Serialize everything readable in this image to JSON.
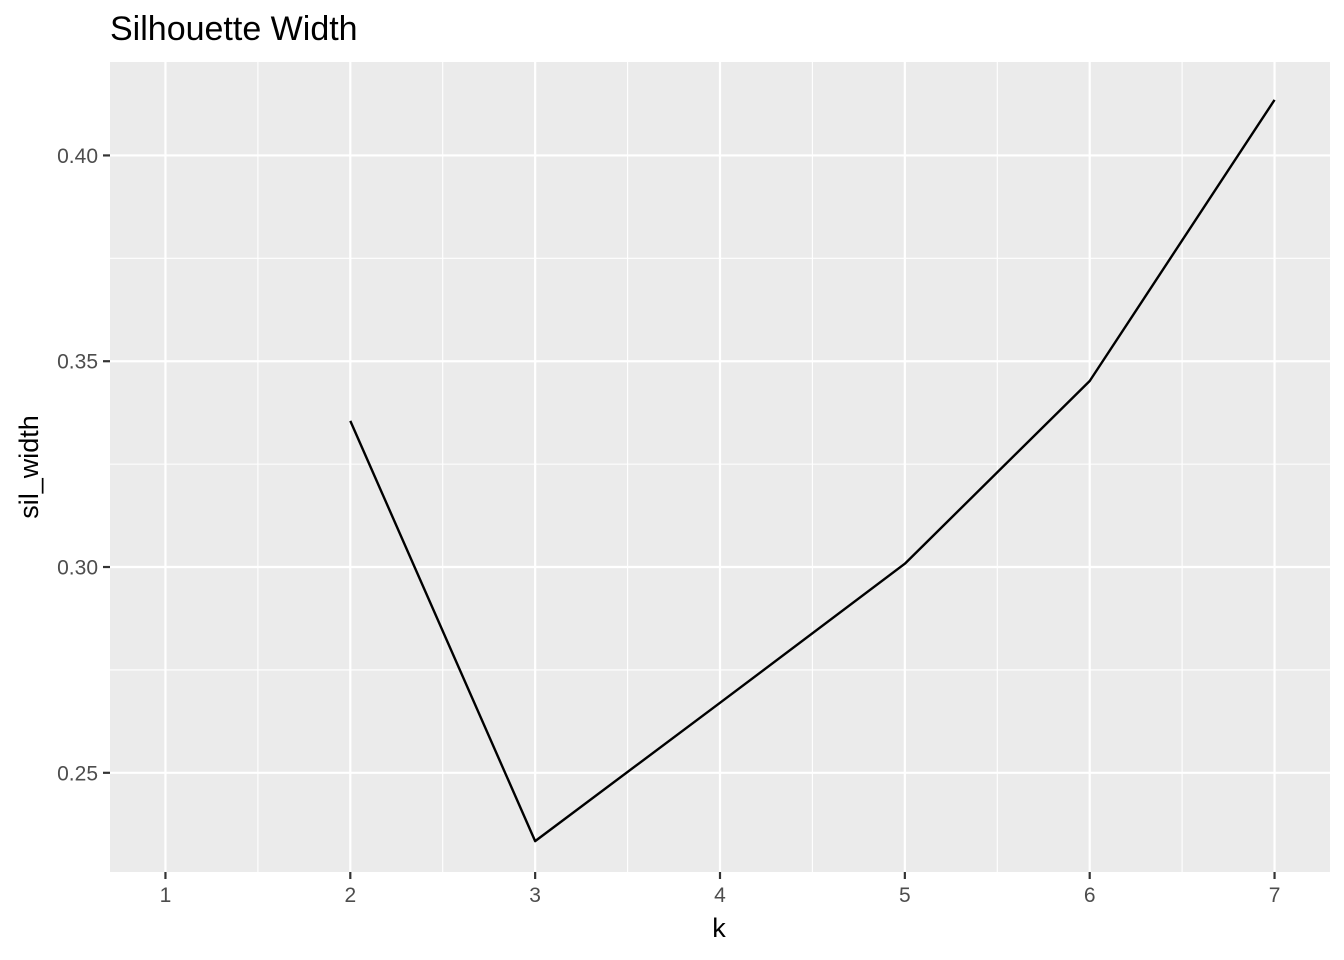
{
  "chart_data": {
    "type": "line",
    "title": "Silhouette Width",
    "xlabel": "k",
    "ylabel": "sil_width",
    "x": [
      2,
      3,
      4,
      5,
      6,
      7
    ],
    "y": [
      0.3355,
      0.2334,
      0.267,
      0.3008,
      0.3452,
      0.4135
    ],
    "xlim": [
      0.7,
      7.3
    ],
    "ylim": [
      0.2259,
      0.4227
    ],
    "x_ticks": [
      1,
      2,
      3,
      4,
      5,
      6,
      7
    ],
    "x_tick_labels": [
      "1",
      "2",
      "3",
      "4",
      "5",
      "6",
      "7"
    ],
    "y_ticks": [
      0.25,
      0.3,
      0.35,
      0.4
    ],
    "y_tick_labels": [
      "0.25",
      "0.30",
      "0.35",
      "0.40"
    ],
    "grid": true,
    "line_color": "#000000",
    "panel_color": "#ebebeb"
  }
}
